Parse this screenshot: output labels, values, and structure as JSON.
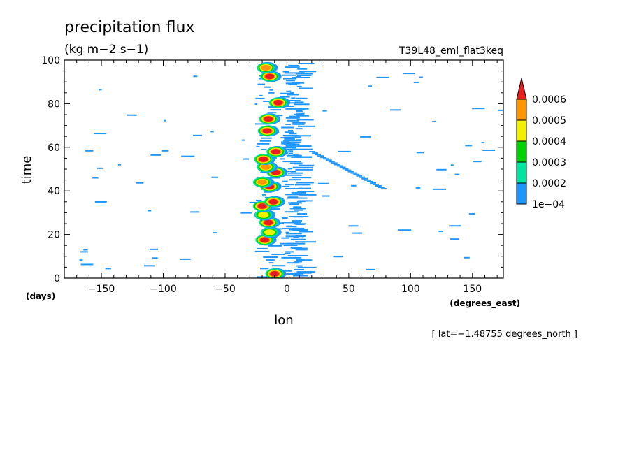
{
  "chart_data": {
    "type": "heatmap",
    "title": "precipitation flux",
    "units": "(kg m−2 s−1)",
    "dataset": "T39L48_eml_flat3keq",
    "xlabel": "lon",
    "xunits": "(degrees_east)",
    "ylabel": "time",
    "yunits": "(days)",
    "xlim": [
      -180,
      175
    ],
    "ylim": [
      0,
      100
    ],
    "xticks": [
      -150,
      -100,
      -50,
      0,
      50,
      100,
      150
    ],
    "xtick_labels": [
      "−150",
      "−100",
      "−50",
      "0",
      "50",
      "100",
      "150"
    ],
    "yticks": [
      0,
      20,
      40,
      60,
      80,
      100
    ],
    "ytick_labels": [
      "0",
      "20",
      "40",
      "60",
      "80",
      "100"
    ],
    "annotation": "[ lat=−1.48755 degrees_north ]",
    "colorbar": {
      "levels": [
        0.0001,
        0.0002,
        0.0003,
        0.0004,
        0.0005,
        0.0006
      ],
      "labels": [
        "1e−04",
        "0.0002",
        "0.0003",
        "0.0004",
        "0.0005",
        "0.0006"
      ],
      "colors": [
        "#1e96ff",
        "#00e6a0",
        "#00d200",
        "#f0f000",
        "#ff9600",
        "#e61e1e"
      ]
    },
    "convective_events": [
      {
        "lon": -10,
        "time": 2,
        "peak": 6
      },
      {
        "lon": -18,
        "time": 17.5,
        "peak": 6
      },
      {
        "lon": -14,
        "time": 21,
        "peak": 4
      },
      {
        "lon": -15,
        "time": 25.5,
        "peak": 6
      },
      {
        "lon": -19,
        "time": 29,
        "peak": 4
      },
      {
        "lon": -20,
        "time": 33,
        "peak": 6
      },
      {
        "lon": -11,
        "time": 35,
        "peak": 6
      },
      {
        "lon": -14,
        "time": 42,
        "peak": 6
      },
      {
        "lon": -20,
        "time": 44,
        "peak": 5
      },
      {
        "lon": -9,
        "time": 48.5,
        "peak": 6
      },
      {
        "lon": -17,
        "time": 51,
        "peak": 5
      },
      {
        "lon": -19,
        "time": 54.5,
        "peak": 6
      },
      {
        "lon": -9,
        "time": 58,
        "peak": 6
      },
      {
        "lon": -16,
        "time": 67.5,
        "peak": 6
      },
      {
        "lon": -15,
        "time": 73,
        "peak": 6
      },
      {
        "lon": -7,
        "time": 80.5,
        "peak": 6
      },
      {
        "lon": -14,
        "time": 92.5,
        "peak": 6
      },
      {
        "lon": -17,
        "time": 96.5,
        "peak": 5
      }
    ],
    "propagating_streak": {
      "lon_start": 20,
      "time_start": 58,
      "lon_end": 78,
      "time_end": 41
    }
  }
}
